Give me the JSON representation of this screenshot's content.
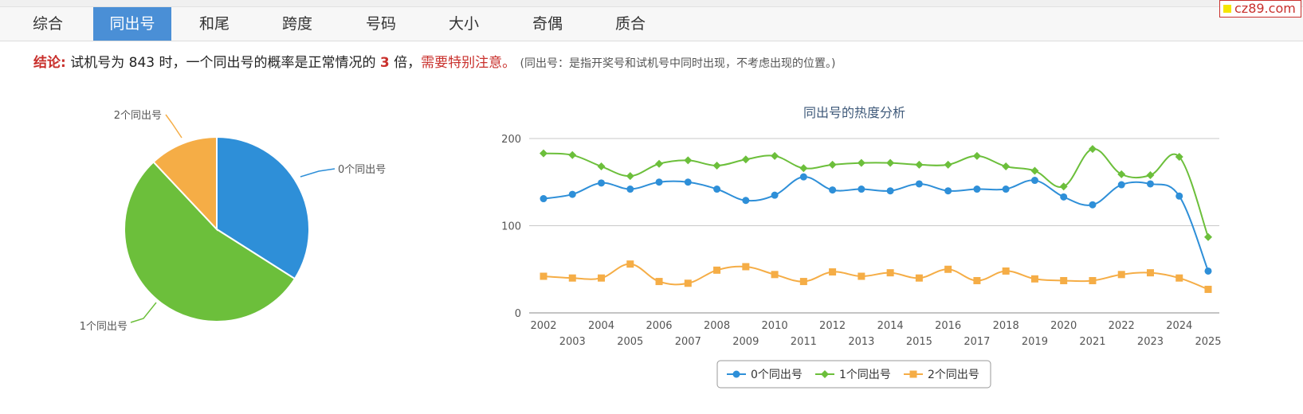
{
  "tabs": [
    {
      "label": "综合",
      "active": false
    },
    {
      "label": "同出号",
      "active": true
    },
    {
      "label": "和尾",
      "active": false
    },
    {
      "label": "跨度",
      "active": false
    },
    {
      "label": "号码",
      "active": false
    },
    {
      "label": "大小",
      "active": false
    },
    {
      "label": "奇偶",
      "active": false
    },
    {
      "label": "质合",
      "active": false
    }
  ],
  "brand": "cz89.com",
  "conclusion": {
    "label": "结论:",
    "text1": "试机号为 843 时，一个同出号的概率是正常情况的",
    "multiple": "3",
    "text2": "倍，",
    "warning": "需要特别注意。",
    "note": "(同出号：是指开奖号和试机号中同时出现，不考虑出现的位置。)"
  },
  "chart_data": [
    {
      "type": "pie",
      "slices": [
        {
          "label": "0个同出号",
          "value": 34,
          "color": "#2e8fd8"
        },
        {
          "label": "1个同出号",
          "value": 54,
          "color": "#6cbf3b"
        },
        {
          "label": "2个同出号",
          "value": 12,
          "color": "#f5ad46"
        }
      ]
    },
    {
      "type": "line",
      "title": "同出号的热度分析",
      "x": [
        "2002",
        "2003",
        "2004",
        "2005",
        "2006",
        "2007",
        "2008",
        "2009",
        "2010",
        "2011",
        "2012",
        "2013",
        "2014",
        "2015",
        "2016",
        "2017",
        "2018",
        "2019",
        "2020",
        "2021",
        "2022",
        "2023",
        "2024",
        "2025"
      ],
      "ylim": [
        0,
        200
      ],
      "yticks": [
        0,
        100,
        200
      ],
      "grid": true,
      "legend": "bottom",
      "series": [
        {
          "name": "0个同出号",
          "color": "#2e8fd8",
          "marker": "circle",
          "values": [
            131,
            136,
            149,
            142,
            150,
            150,
            142,
            129,
            135,
            156,
            141,
            142,
            140,
            148,
            140,
            142,
            142,
            152,
            133,
            124,
            147,
            148,
            134,
            48
          ]
        },
        {
          "name": "1个同出号",
          "color": "#6cbf3b",
          "marker": "diamond",
          "values": [
            183,
            181,
            168,
            157,
            171,
            175,
            169,
            176,
            180,
            166,
            170,
            172,
            172,
            170,
            170,
            180,
            168,
            163,
            145,
            188,
            159,
            158,
            179,
            87
          ]
        },
        {
          "name": "2个同出号",
          "color": "#f5ad46",
          "marker": "square",
          "values": [
            42,
            40,
            40,
            56,
            36,
            34,
            49,
            53,
            44,
            36,
            47,
            42,
            46,
            40,
            50,
            37,
            48,
            39,
            37,
            37,
            44,
            46,
            40,
            27
          ]
        }
      ]
    }
  ]
}
